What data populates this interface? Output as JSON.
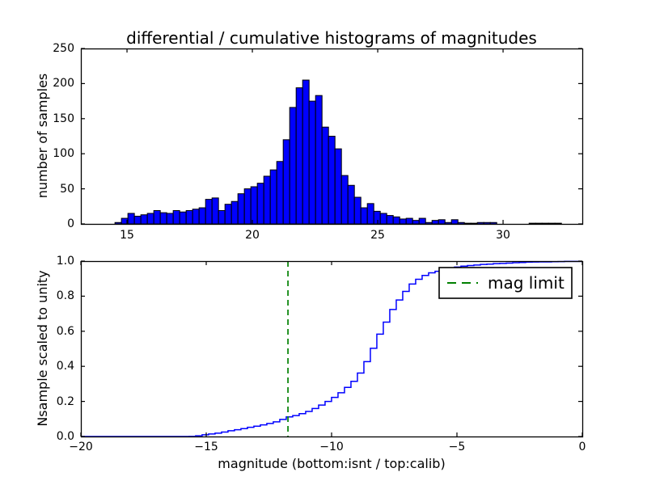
{
  "title": "differential / cumulative histograms of magnitudes",
  "colors": {
    "bar_fill": "#0000ff",
    "bar_edge": "#000000",
    "cumulative_line": "#0000ff",
    "mag_limit_line": "#008000",
    "axis": "#000000",
    "background": "#ffffff"
  },
  "chart_data": [
    {
      "type": "bar",
      "subtype": "histogram",
      "title": "differential / cumulative histograms of magnitudes",
      "xlabel": "",
      "ylabel": "number of samples",
      "xlim": [
        13.16,
        33.16
      ],
      "ylim": [
        0,
        250
      ],
      "xticks": {
        "values": [
          15,
          20,
          25,
          30
        ],
        "labels": [
          "15",
          "20",
          "25",
          "30"
        ]
      },
      "yticks": {
        "values": [
          0,
          50,
          100,
          150,
          200,
          250
        ],
        "labels": [
          "0",
          "50",
          "100",
          "150",
          "200",
          "250"
        ]
      },
      "grid": false,
      "bin_start_mag": 14.52,
      "bin_width_mag": 0.2581,
      "counts": [
        2,
        8,
        15,
        11,
        13,
        15,
        19,
        16,
        15,
        19,
        17,
        19,
        21,
        23,
        35,
        37,
        19,
        28,
        32,
        43,
        50,
        53,
        58,
        68,
        77,
        89,
        120,
        166,
        194,
        205,
        175,
        183,
        138,
        125,
        107,
        69,
        55,
        38,
        23,
        29,
        18,
        15,
        12,
        10,
        7,
        8,
        5,
        8,
        2,
        5,
        6,
        2,
        6,
        2,
        1,
        1,
        2,
        2,
        2,
        0,
        0,
        0,
        0,
        0,
        1,
        1,
        1,
        1,
        1
      ],
      "peak_count": 205,
      "peak_mag": 22.1
    },
    {
      "type": "line",
      "subtype": "cumulative-step",
      "title": "",
      "xlabel": "magnitude (bottom:isnt / top:calib)",
      "ylabel": "Nsample scaled to unity",
      "xlim": [
        -20,
        0
      ],
      "ylim": [
        0.0,
        1.0
      ],
      "xticks": {
        "values": [
          -20,
          -15,
          -10,
          -5,
          0
        ],
        "labels": [
          "−20",
          "−15",
          "−10",
          "−5",
          "0"
        ]
      },
      "yticks": {
        "values": [
          0.0,
          0.2,
          0.4,
          0.6,
          0.8,
          1.0
        ],
        "labels": [
          "0.0",
          "0.2",
          "0.4",
          "0.6",
          "0.8",
          "1.0"
        ]
      },
      "grid": false,
      "derived_from_top_histogram": true,
      "mag_shift_bottom_equals_top_minus": 30.2,
      "mag_limit": -11.74,
      "legend": {
        "label": "mag limit",
        "position": "upper right",
        "line_style": "dashed",
        "line_color": "#008000"
      }
    }
  ]
}
